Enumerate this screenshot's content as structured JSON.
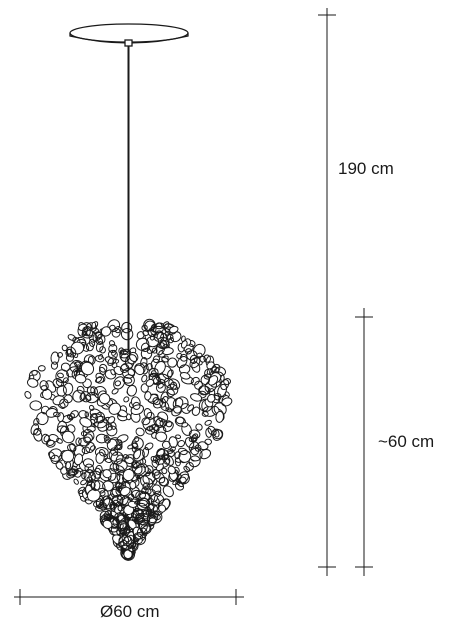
{
  "dimensions": {
    "total_height": "190 cm",
    "cluster_height": "~60 cm",
    "diameter": "Ø60 cm"
  },
  "colors": {
    "line": "#1a1a1a",
    "background": "#ffffff"
  }
}
